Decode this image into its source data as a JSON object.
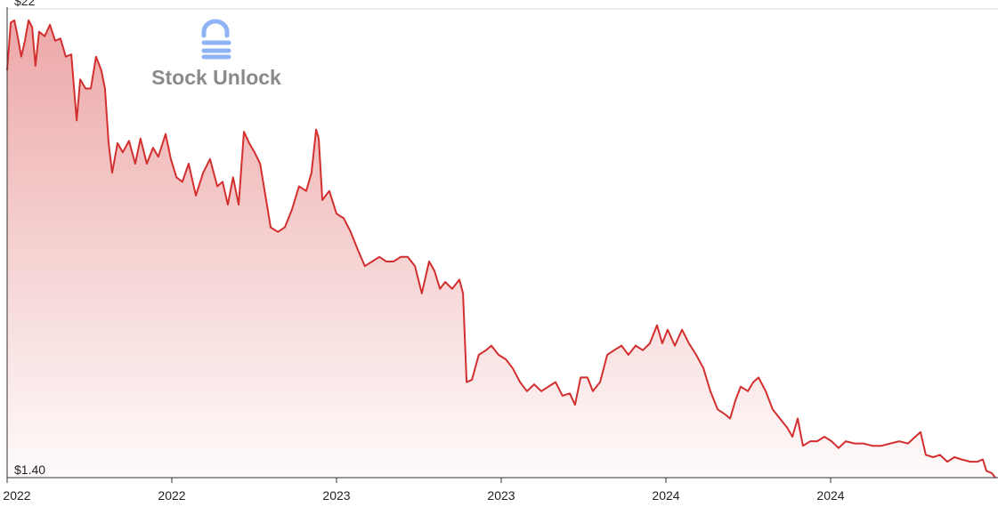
{
  "chart_data": {
    "type": "area",
    "watermark": "Stock Unlock",
    "color": "#d32f2f",
    "x": [
      2022.0,
      2022.011,
      2022.022,
      2022.032,
      2022.043,
      2022.054,
      2022.065,
      2022.076,
      2022.086,
      2022.097,
      2022.114,
      2022.13,
      2022.146,
      2022.162,
      2022.178,
      2022.195,
      2022.211,
      2022.222,
      2022.238,
      2022.254,
      2022.27,
      2022.286,
      2022.297,
      2022.308,
      2022.319,
      2022.335,
      2022.351,
      2022.37,
      2022.389,
      2022.405,
      2022.424,
      2022.443,
      2022.459,
      2022.481,
      2022.497,
      2022.514,
      2022.532,
      2022.551,
      2022.573,
      2022.595,
      2022.616,
      2022.638,
      2022.654,
      2022.67,
      2022.686,
      2022.703,
      2022.719,
      2022.735,
      2022.751,
      2022.768,
      2022.784,
      2022.8,
      2022.822,
      2022.843,
      2022.865,
      2022.886,
      2022.908,
      2022.924,
      2022.938,
      2022.946,
      2022.957,
      2022.978,
      2023.0,
      2023.022,
      2023.043,
      2023.065,
      2023.086,
      2023.108,
      2023.13,
      2023.151,
      2023.173,
      2023.195,
      2023.216,
      2023.238,
      2023.259,
      2023.281,
      2023.297,
      2023.314,
      2023.33,
      2023.351,
      2023.373,
      2023.384,
      2023.395,
      2023.411,
      2023.432,
      2023.454,
      2023.47,
      2023.492,
      2023.514,
      2023.535,
      2023.557,
      2023.578,
      2023.6,
      2023.622,
      2023.643,
      2023.665,
      2023.686,
      2023.708,
      2023.724,
      2023.741,
      2023.762,
      2023.778,
      2023.8,
      2023.822,
      2023.843,
      2023.865,
      2023.886,
      2023.908,
      2023.93,
      2023.951,
      2023.973,
      2023.989,
      2024.005,
      2024.027,
      2024.049,
      2024.07,
      2024.092,
      2024.114,
      2024.135,
      2024.157,
      2024.178,
      2024.195,
      2024.211,
      2024.227,
      2024.249,
      2024.265,
      2024.281,
      2024.303,
      2024.324,
      2024.346,
      2024.368,
      2024.384,
      2024.4,
      2024.416,
      2024.438,
      2024.459,
      2024.481,
      2024.503,
      2024.524,
      2024.546,
      2024.573,
      2024.6,
      2024.627,
      2024.654,
      2024.681,
      2024.708,
      2024.735,
      2024.757,
      2024.773,
      2024.789,
      2024.811,
      2024.832,
      2024.854,
      2024.876,
      2024.897,
      2024.924,
      2024.946,
      2024.962,
      2024.973,
      2024.989,
      2025.0
    ],
    "values": [
      19.3,
      21.4,
      21.5,
      20.8,
      19.9,
      20.6,
      21.5,
      21.2,
      19.5,
      21.0,
      20.8,
      21.3,
      20.6,
      20.7,
      19.9,
      20.0,
      17.1,
      18.9,
      18.5,
      18.5,
      19.9,
      19.3,
      18.5,
      16.1,
      14.8,
      16.1,
      15.7,
      16.2,
      15.2,
      16.3,
      15.2,
      15.9,
      15.5,
      16.5,
      15.4,
      14.6,
      14.4,
      15.2,
      13.8,
      14.8,
      15.4,
      14.2,
      14.4,
      13.4,
      14.6,
      13.4,
      16.6,
      16.1,
      15.7,
      15.2,
      13.8,
      12.4,
      12.2,
      12.4,
      13.2,
      14.2,
      14.0,
      14.8,
      16.7,
      16.3,
      13.6,
      14.0,
      13.0,
      12.8,
      12.2,
      11.4,
      10.7,
      10.9,
      11.1,
      10.9,
      10.9,
      11.1,
      11.1,
      10.7,
      9.5,
      10.9,
      10.5,
      9.7,
      10.0,
      9.7,
      10.1,
      9.5,
      5.6,
      5.7,
      6.8,
      7.0,
      7.2,
      6.8,
      6.6,
      6.2,
      5.6,
      5.2,
      5.5,
      5.2,
      5.4,
      5.6,
      5.0,
      5.1,
      4.6,
      5.8,
      5.8,
      5.2,
      5.6,
      6.8,
      7.0,
      7.2,
      6.8,
      7.2,
      7.0,
      7.3,
      8.1,
      7.3,
      7.9,
      7.2,
      7.9,
      7.3,
      6.8,
      6.2,
      5.2,
      4.4,
      4.2,
      4.0,
      4.8,
      5.4,
      5.2,
      5.6,
      5.8,
      5.2,
      4.4,
      4.0,
      3.6,
      3.2,
      4.0,
      2.8,
      3.0,
      3.0,
      3.2,
      3.0,
      2.7,
      3.0,
      2.9,
      2.9,
      2.8,
      2.8,
      2.9,
      3.0,
      2.9,
      3.2,
      3.4,
      2.4,
      2.3,
      2.4,
      2.1,
      2.3,
      2.2,
      2.1,
      2.1,
      2.2,
      1.7,
      1.6,
      1.4
    ],
    "xlim": [
      2022,
      2025
    ],
    "xticks": [
      {
        "value": 2022,
        "label": "2022"
      },
      {
        "value": 2022.5,
        "label": "2022"
      },
      {
        "value": 2023,
        "label": "2023"
      },
      {
        "value": 2023.5,
        "label": "2023"
      },
      {
        "value": 2024,
        "label": "2024"
      },
      {
        "value": 2024.5,
        "label": "2024"
      }
    ],
    "ylim": [
      1.4,
      22
    ],
    "yticks": [
      {
        "value": 1.4,
        "label": "$1.40"
      },
      {
        "value": 22,
        "label": "$22"
      }
    ],
    "grid": true
  }
}
